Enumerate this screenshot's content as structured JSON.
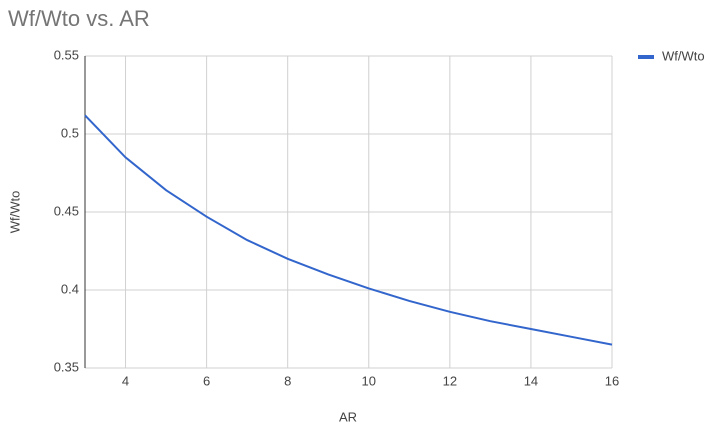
{
  "chart_data": {
    "type": "line",
    "title": "Wf/Wto vs. AR",
    "x_label": "AR",
    "y_label": "Wf/Wto",
    "x": [
      3,
      4,
      5,
      6,
      7,
      8,
      9,
      10,
      11,
      12,
      13,
      14,
      15,
      16
    ],
    "series": [
      {
        "name": "Wf/Wto",
        "color": "#3366cc",
        "values": [
          0.512,
          0.485,
          0.464,
          0.447,
          0.432,
          0.42,
          0.41,
          0.401,
          0.393,
          0.386,
          0.38,
          0.375,
          0.37,
          0.365
        ]
      }
    ],
    "xlim": [
      3,
      16
    ],
    "xticks": [
      4,
      6,
      8,
      10,
      12,
      14,
      16
    ],
    "ylim": [
      0.35,
      0.55
    ],
    "yticks": [
      0.35,
      0.4,
      0.45,
      0.5,
      0.55
    ],
    "grid": true,
    "legend": "right"
  }
}
